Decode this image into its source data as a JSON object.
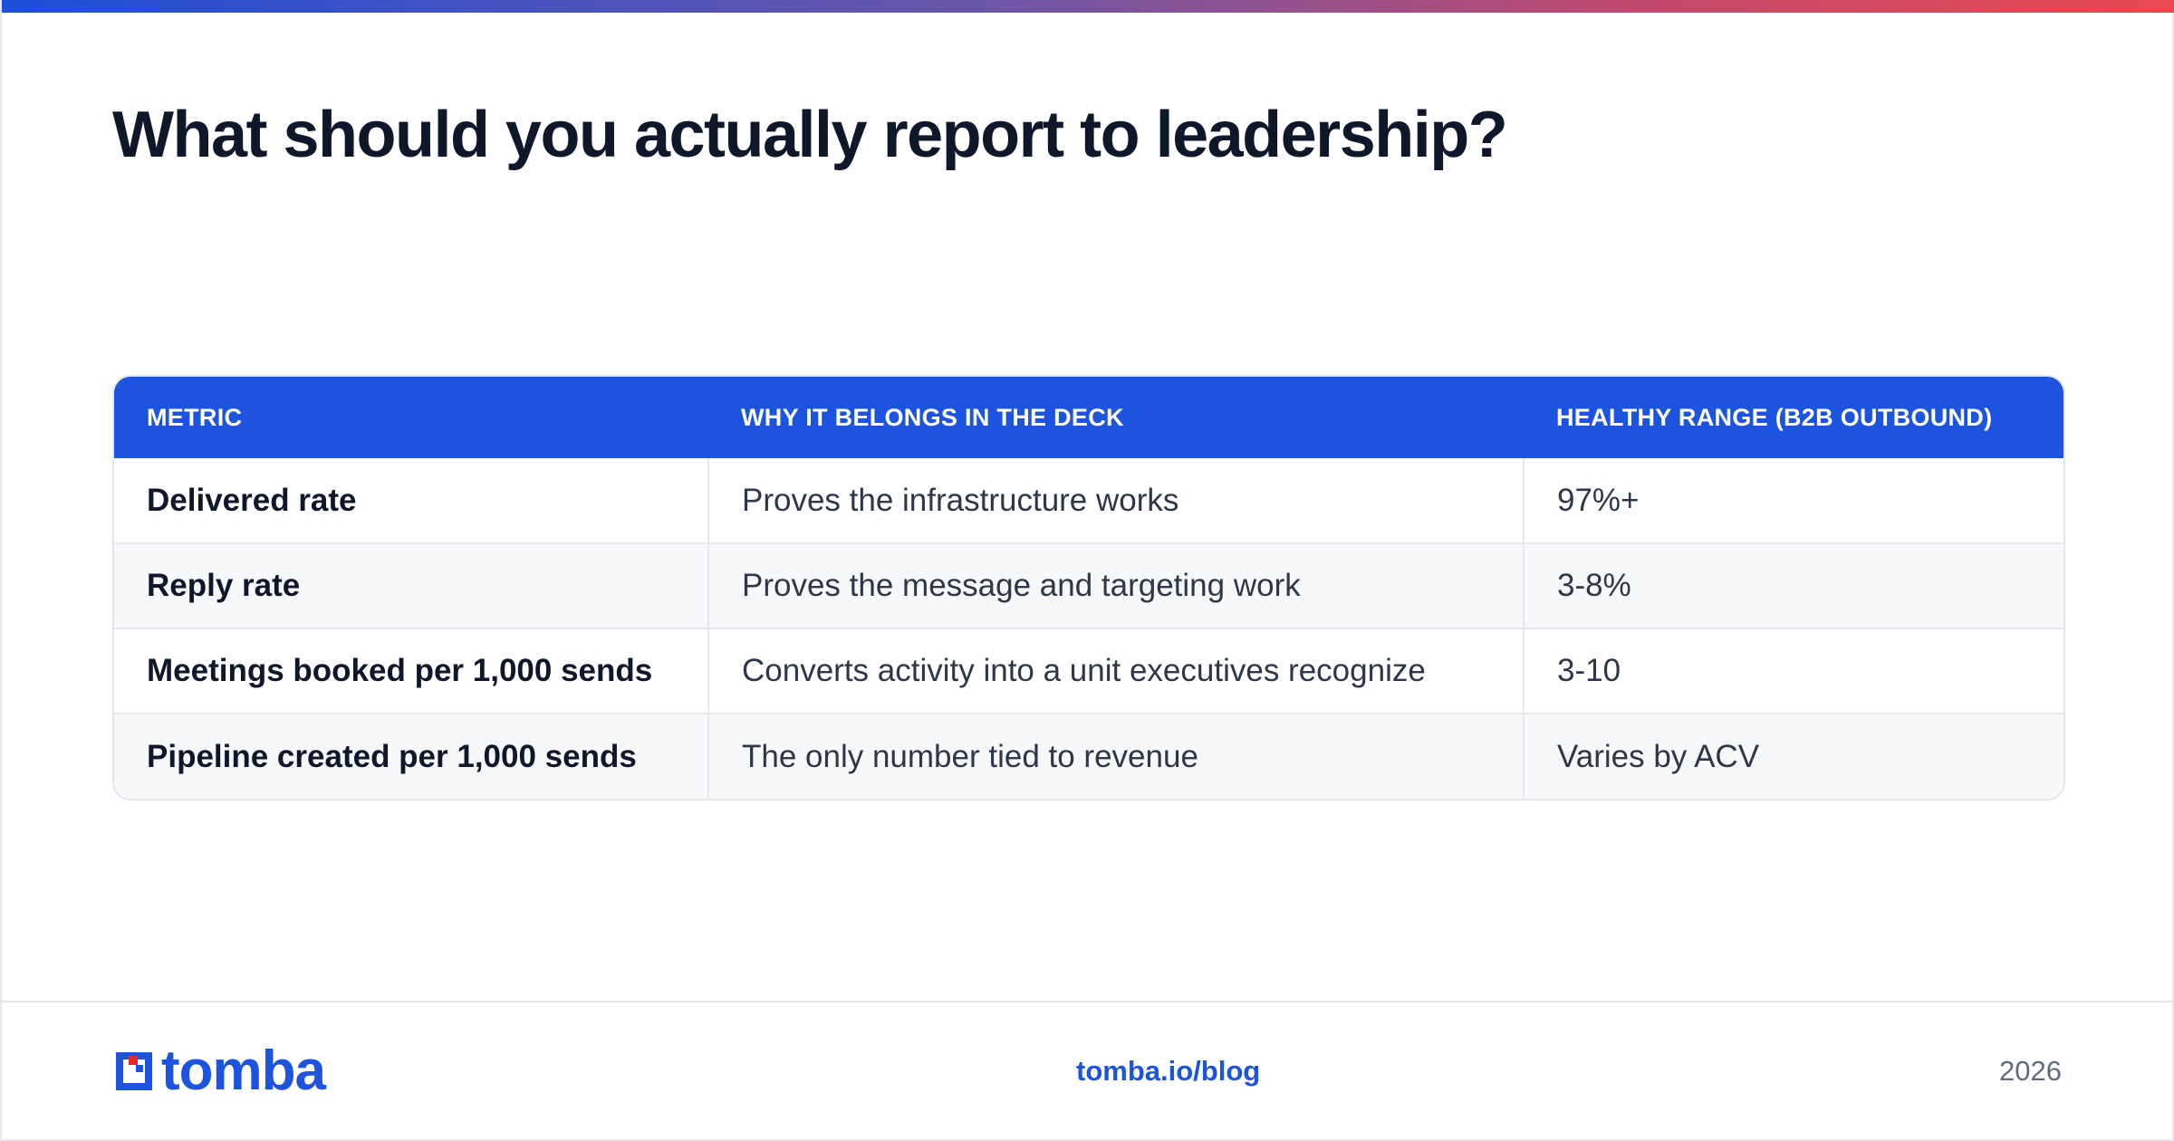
{
  "title": "What should you actually report to leadership?",
  "table": {
    "headers": [
      "METRIC",
      "WHY IT BELONGS IN THE DECK",
      "HEALTHY RANGE (B2B OUTBOUND)"
    ],
    "rows": [
      [
        "Delivered rate",
        "Proves the infrastructure works",
        "97%+"
      ],
      [
        "Reply rate",
        "Proves the message and targeting work",
        "3-8%"
      ],
      [
        "Meetings booked per 1,000 sends",
        "Converts activity into a unit executives recognize",
        "3-10"
      ],
      [
        "Pipeline created per 1,000 sends",
        "The only number tied to revenue",
        "Varies by ACV"
      ]
    ]
  },
  "footer": {
    "logo_text": "tomba",
    "link": "tomba.io/blog",
    "year": "2026"
  },
  "colors": {
    "accent": "#1c54df",
    "logo_red": "#e8262c"
  }
}
